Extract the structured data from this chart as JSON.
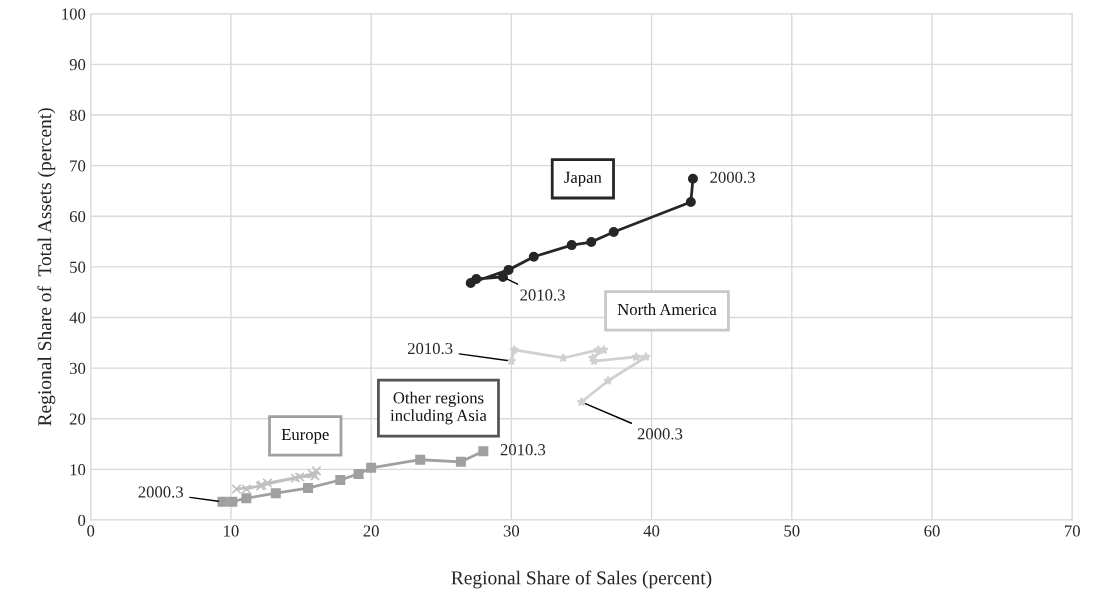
{
  "chart_data": {
    "type": "line",
    "xlabel": "Regional Share of Sales (percent)",
    "ylabel": "Regional Share of  Total Assets (percent)",
    "xlim": [
      0,
      70
    ],
    "ylim": [
      0,
      100
    ],
    "xticks": [
      0,
      10,
      20,
      30,
      40,
      50,
      60,
      70
    ],
    "yticks": [
      0,
      10,
      20,
      30,
      40,
      50,
      60,
      70,
      80,
      90,
      100
    ],
    "grid": true,
    "legend": false,
    "series": [
      {
        "name": "Japan",
        "color": "#262626",
        "marker": "circle",
        "x": [
          42.95,
          42.8,
          37.3,
          35.7,
          34.3,
          31.6,
          29.8,
          27.1,
          27.5,
          29.4
        ],
        "values": [
          67.4,
          62.8,
          56.9,
          54.9,
          54.3,
          52.0,
          49.4,
          46.8,
          47.6,
          48.0
        ]
      },
      {
        "name": "North America",
        "color": "#d0d0d0",
        "marker": "star",
        "x": [
          35.0,
          36.9,
          39.6,
          38.9,
          35.9,
          35.8,
          36.6,
          36.2,
          33.7,
          30.2,
          30.0
        ],
        "values": [
          23.3,
          27.5,
          32.2,
          32.2,
          31.4,
          32.0,
          33.6,
          33.6,
          32.0,
          33.6,
          31.4
        ]
      },
      {
        "name": "Other regions\nincluding Asia",
        "color": "#a0a0a0",
        "marker": "square",
        "x": [
          9.4,
          10.1,
          11.1,
          13.2,
          15.5,
          17.8,
          19.1,
          20.0,
          23.5,
          26.4,
          28.0
        ],
        "values": [
          3.6,
          3.6,
          4.3,
          5.3,
          6.3,
          7.9,
          9.1,
          10.3,
          11.9,
          11.5,
          13.6
        ]
      },
      {
        "name": "Europe",
        "color": "#c0c0c0",
        "marker": "cross",
        "x": [
          10.4,
          12.1,
          12.6,
          14.9,
          16.0,
          16.1,
          15.8,
          14.6,
          12.2,
          11.1
        ],
        "values": [
          6.1,
          6.7,
          7.3,
          8.5,
          8.7,
          9.7,
          9.1,
          8.3,
          6.9,
          6.1
        ]
      }
    ],
    "annotations": [
      {
        "text": "2000.3",
        "x": 42.95,
        "y": 67.4
      },
      {
        "text": "2010.3",
        "x": 29.4,
        "y": 48.0
      },
      {
        "text": "2010.3",
        "x": 30.0,
        "y": 31.4
      },
      {
        "text": "2000.3",
        "x": 35.0,
        "y": 23.3
      },
      {
        "text": "2000.3",
        "x": 9.4,
        "y": 3.6
      },
      {
        "text": "2010.3",
        "x": 28.0,
        "y": 13.6
      }
    ]
  }
}
